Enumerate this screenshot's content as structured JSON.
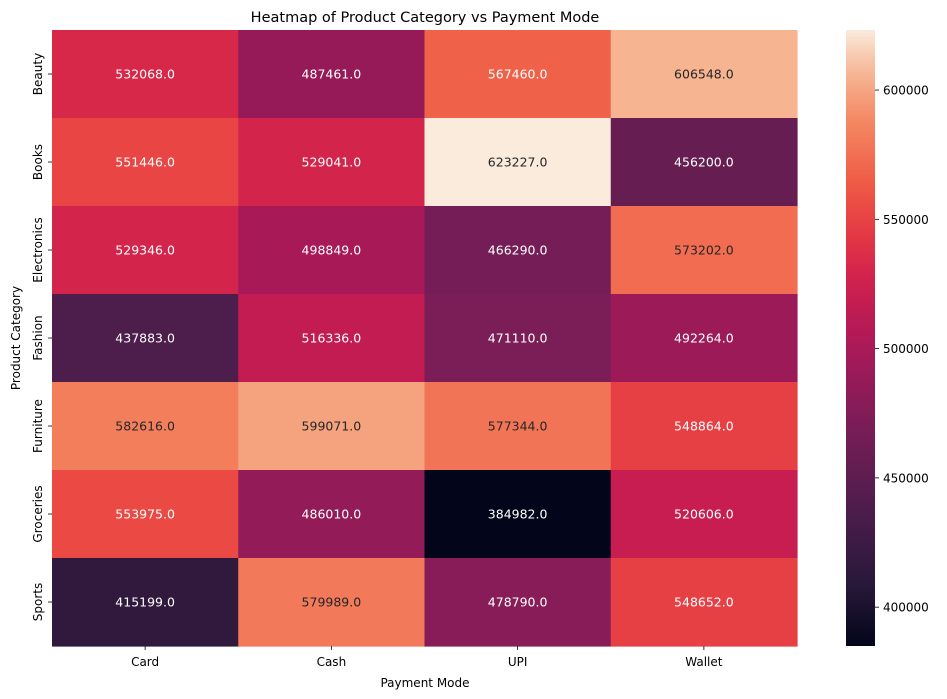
{
  "chart_data": {
    "type": "heatmap",
    "title": "Heatmap of Product Category vs Payment Mode",
    "xlabel": "Payment Mode",
    "ylabel": "Product Category",
    "x_categories": [
      "Card",
      "Cash",
      "UPI",
      "Wallet"
    ],
    "y_categories": [
      "Beauty",
      "Books",
      "Electronics",
      "Fashion",
      "Furniture",
      "Groceries",
      "Sports"
    ],
    "values": [
      [
        532068.0,
        487461.0,
        567460.0,
        606548.0
      ],
      [
        551446.0,
        529041.0,
        623227.0,
        456200.0
      ],
      [
        529346.0,
        498849.0,
        466290.0,
        573202.0
      ],
      [
        437883.0,
        516336.0,
        471110.0,
        492264.0
      ],
      [
        582616.0,
        599071.0,
        577344.0,
        548864.0
      ],
      [
        553975.0,
        486010.0,
        384982.0,
        520606.0
      ],
      [
        415199.0,
        579989.0,
        478790.0,
        548652.0
      ]
    ],
    "colormap": "rocket",
    "value_range": [
      384982.0,
      623227.0
    ],
    "colorbar_ticks": [
      400000,
      450000,
      500000,
      550000,
      600000
    ],
    "annotation_format": "0.0"
  }
}
